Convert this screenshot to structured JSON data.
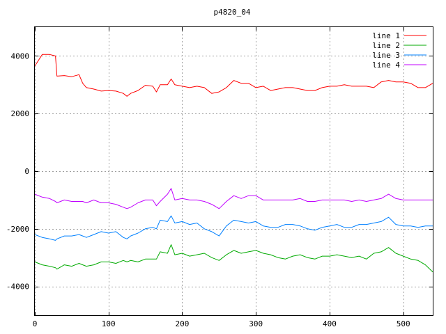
{
  "chart_data": {
    "type": "line",
    "title": "p4820_04",
    "xlabel": "",
    "ylabel": "",
    "xlim": [
      0,
      540
    ],
    "ylim": [
      -5000,
      5000
    ],
    "xticks": [
      0,
      100,
      200,
      300,
      400,
      500
    ],
    "yticks": [
      -4000,
      -2000,
      0,
      2000,
      4000
    ],
    "grid": true,
    "legend_position": "top-right",
    "x": [
      0,
      10,
      20,
      28,
      30,
      40,
      50,
      60,
      65,
      70,
      80,
      90,
      100,
      110,
      120,
      125,
      130,
      140,
      150,
      160,
      165,
      170,
      180,
      185,
      190,
      200,
      210,
      220,
      230,
      240,
      250,
      260,
      270,
      280,
      290,
      300,
      310,
      320,
      330,
      340,
      350,
      360,
      370,
      380,
      390,
      400,
      410,
      420,
      430,
      440,
      450,
      460,
      470,
      480,
      490,
      500,
      510,
      520,
      530,
      540
    ],
    "series": [
      {
        "name": "line 1",
        "color": "#ff0000",
        "values": [
          3650,
          4050,
          4050,
          4000,
          3300,
          3320,
          3280,
          3350,
          3050,
          2900,
          2850,
          2780,
          2800,
          2780,
          2700,
          2600,
          2700,
          2800,
          2980,
          2950,
          2750,
          3000,
          3000,
          3200,
          3000,
          2950,
          2900,
          2950,
          2900,
          2700,
          2750,
          2900,
          3150,
          3050,
          3050,
          2900,
          2950,
          2800,
          2850,
          2900,
          2900,
          2850,
          2800,
          2800,
          2900,
          2950,
          2950,
          3000,
          2950,
          2950,
          2950,
          2900,
          3100,
          3150,
          3100,
          3100,
          3050,
          2900,
          2900,
          3050
        ]
      },
      {
        "name": "line 2",
        "color": "#00aa00",
        "values": [
          -3150,
          -3250,
          -3300,
          -3350,
          -3400,
          -3250,
          -3300,
          -3200,
          -3250,
          -3300,
          -3250,
          -3150,
          -3150,
          -3200,
          -3100,
          -3150,
          -3100,
          -3150,
          -3050,
          -3050,
          -3050,
          -2800,
          -2850,
          -2550,
          -2900,
          -2850,
          -2950,
          -2900,
          -2850,
          -3000,
          -3100,
          -2900,
          -2750,
          -2850,
          -2800,
          -2750,
          -2850,
          -2900,
          -3000,
          -3050,
          -2950,
          -2900,
          -3000,
          -3050,
          -2950,
          -2950,
          -2900,
          -2950,
          -3000,
          -2950,
          -3050,
          -2850,
          -2800,
          -2650,
          -2850,
          -2950,
          -3050,
          -3100,
          -3250,
          -3500
        ]
      },
      {
        "name": "line 3",
        "color": "#0080ff",
        "values": [
          -2200,
          -2300,
          -2350,
          -2400,
          -2350,
          -2250,
          -2250,
          -2200,
          -2250,
          -2300,
          -2200,
          -2100,
          -2150,
          -2100,
          -2300,
          -2350,
          -2250,
          -2150,
          -2000,
          -1950,
          -2000,
          -1700,
          -1750,
          -1550,
          -1800,
          -1750,
          -1850,
          -1800,
          -2000,
          -2100,
          -2250,
          -1900,
          -1700,
          -1750,
          -1800,
          -1750,
          -1900,
          -1950,
          -1950,
          -1850,
          -1850,
          -1900,
          -2000,
          -2050,
          -1950,
          -1900,
          -1850,
          -1950,
          -1950,
          -1850,
          -1850,
          -1800,
          -1750,
          -1600,
          -1850,
          -1900,
          -1900,
          -1950,
          -1900,
          -1900
        ]
      },
      {
        "name": "line 4",
        "color": "#c000ff",
        "values": [
          -800,
          -900,
          -950,
          -1050,
          -1100,
          -1000,
          -1050,
          -1050,
          -1050,
          -1100,
          -1000,
          -1100,
          -1100,
          -1150,
          -1250,
          -1300,
          -1250,
          -1100,
          -1000,
          -1000,
          -1200,
          -1050,
          -800,
          -600,
          -1000,
          -950,
          -1000,
          -1000,
          -1050,
          -1150,
          -1300,
          -1050,
          -850,
          -950,
          -850,
          -850,
          -1000,
          -1000,
          -1000,
          -1000,
          -1000,
          -950,
          -1050,
          -1050,
          -1000,
          -1000,
          -1000,
          -1000,
          -1050,
          -1000,
          -1050,
          -1000,
          -950,
          -800,
          -950,
          -1000,
          -1000,
          -1000,
          -1000,
          -1000
        ]
      }
    ]
  }
}
